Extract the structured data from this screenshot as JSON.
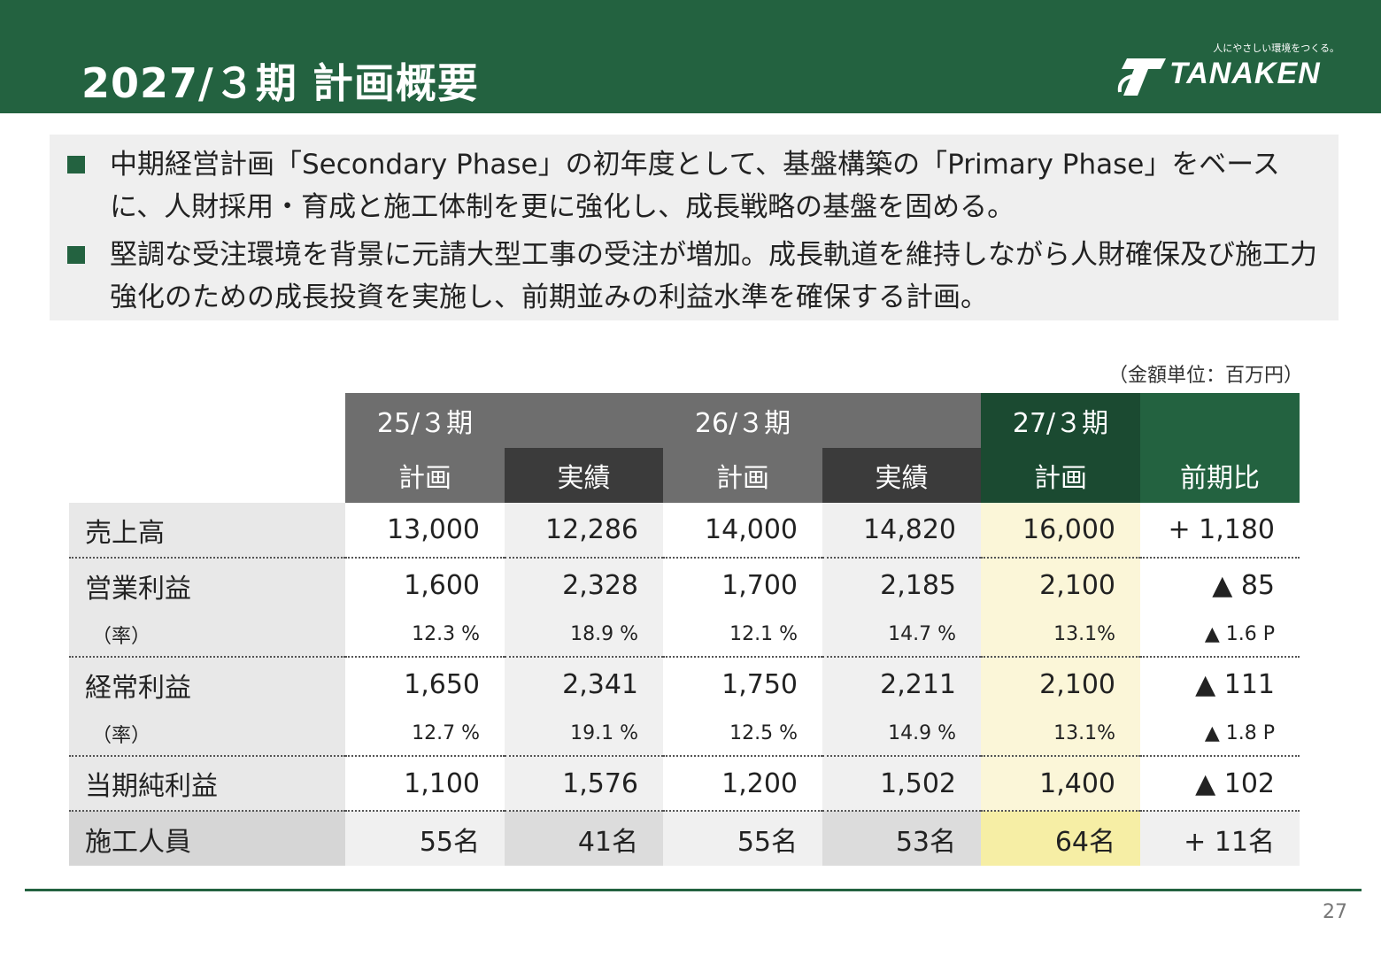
{
  "header": {
    "title": "2027/３期 計画概要",
    "logo_tagline": "人にやさしい環境をつくる。",
    "logo_text": "TANAKEN"
  },
  "summary": {
    "bullets": [
      "中期経営計画「Secondary Phase」の初年度として、基盤構築の「Primary Phase」をベースに、人財採用・育成と施工体制を更に強化し、成長戦略の基盤を固める。",
      "堅調な受注環境を背景に元請大型工事の受注が増加。成長軌道を維持しながら人財確保及び施工力強化のための成長投資を実施し、前期並みの利益水準を確保する計画。"
    ]
  },
  "table": {
    "unit_note": "（金額単位：百万円）",
    "periods": [
      "25/３期",
      "26/３期",
      "27/３期"
    ],
    "subheaders": [
      "計画",
      "実績",
      "計画",
      "実績",
      "計画",
      "前期比"
    ],
    "rows": {
      "sales": {
        "label": "売上高",
        "values": [
          "13,000",
          "12,286",
          "14,000",
          "14,820",
          "16,000",
          "+ 1,180"
        ]
      },
      "op": {
        "label": "営業利益",
        "values": [
          "1,600",
          "2,328",
          "1,700",
          "2,185",
          "2,100",
          "▲ 85"
        ]
      },
      "op_rate": {
        "label": "（率）",
        "values": [
          "12.3 %",
          "18.9 %",
          "12.1 %",
          "14.7 %",
          "13.1%",
          "▲ 1.6 P"
        ]
      },
      "ord": {
        "label": "経常利益",
        "values": [
          "1,650",
          "2,341",
          "1,750",
          "2,211",
          "2,100",
          "▲ 111"
        ]
      },
      "ord_rate": {
        "label": "（率）",
        "values": [
          "12.7 %",
          "19.1 %",
          "12.5 %",
          "14.9 %",
          "13.1%",
          "▲ 1.8 P"
        ]
      },
      "net": {
        "label": "当期純利益",
        "values": [
          "1,100",
          "1,576",
          "1,200",
          "1,502",
          "1,400",
          "▲ 102"
        ]
      },
      "staff": {
        "label": "施工人員",
        "values": [
          "55名",
          "41名",
          "55名",
          "53名",
          "64名",
          "+ 11名"
        ]
      }
    }
  },
  "footer": {
    "page_number": "27"
  }
}
